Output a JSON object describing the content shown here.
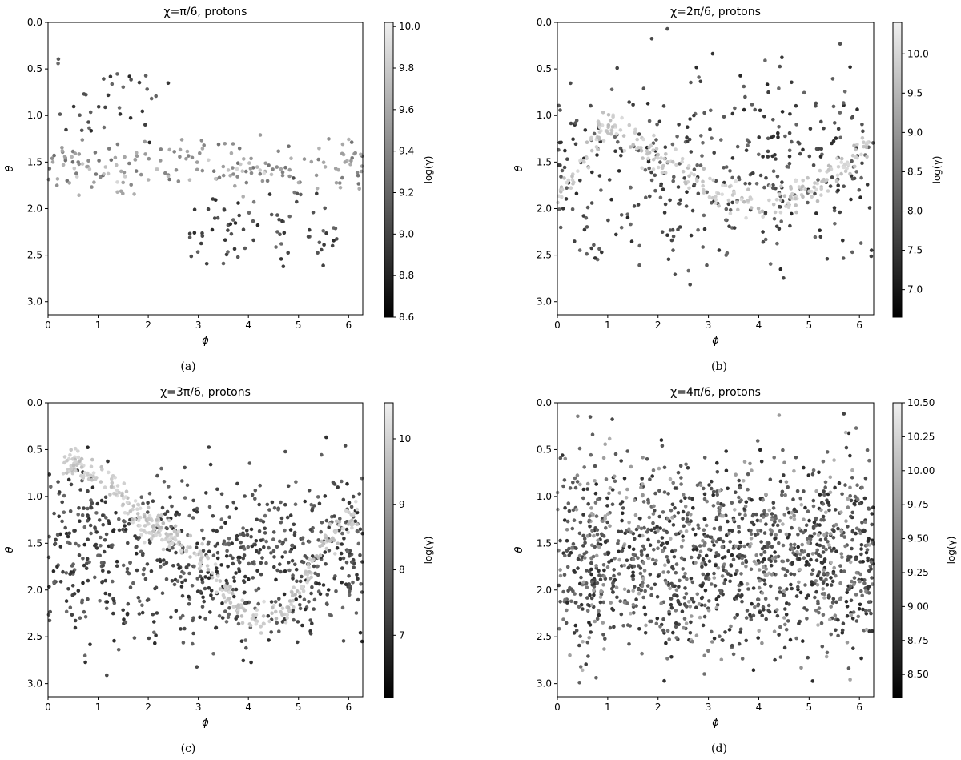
{
  "figure": {
    "captions": [
      "(a)",
      "(b)",
      "(c)",
      "(d)"
    ]
  },
  "chart_data": [
    {
      "type": "scatter",
      "title": "χ=π/6, protons",
      "xlabel": "ϕ",
      "ylabel": "θ",
      "colorbar_label": "log(γ)",
      "xlim": [
        0,
        6.283
      ],
      "ylim": [
        3.14,
        0
      ],
      "y_inverted": true,
      "xticks": [
        "0",
        "1",
        "2",
        "3",
        "4",
        "5",
        "6"
      ],
      "yticks": [
        "0.0",
        "0.5",
        "1.0",
        "1.5",
        "2.0",
        "2.5",
        "3.0"
      ],
      "colorbar_range": [
        8.6,
        10.02
      ],
      "colorbar_ticks": [
        "8.6",
        "8.8",
        "9.0",
        "9.2",
        "9.4",
        "9.6",
        "9.8",
        "10.0"
      ],
      "colormap": "gray",
      "point_count": 300,
      "features": [
        {
          "x": [
            0,
            6.28
          ],
          "y_center": 1.55,
          "y_spread": 0.22,
          "shade": "mid",
          "weight": 0.55
        },
        {
          "x": [
            2.8,
            5.8
          ],
          "y_center": 2.3,
          "y_spread": 0.35,
          "shade": "dark",
          "weight": 0.25
        },
        {
          "x": [
            0,
            2.5
          ],
          "y_center": 0.85,
          "y_spread": 0.3,
          "shade": "dark",
          "weight": 0.12
        },
        {
          "x": [
            0.2,
            4.5
          ],
          "y_center": 1.6,
          "y_spread": 0.1,
          "shade": "light",
          "weight": 0.08
        }
      ]
    },
    {
      "type": "scatter",
      "title": "χ=2π/6, protons",
      "xlabel": "ϕ",
      "ylabel": "θ",
      "colorbar_label": "log(γ)",
      "xlim": [
        0,
        6.283
      ],
      "ylim": [
        3.14,
        0
      ],
      "y_inverted": true,
      "xticks": [
        "0",
        "1",
        "2",
        "3",
        "4",
        "5",
        "6"
      ],
      "yticks": [
        "0.0",
        "0.5",
        "1.0",
        "1.5",
        "2.0",
        "2.5",
        "3.0"
      ],
      "colorbar_range": [
        6.65,
        10.4
      ],
      "colorbar_ticks": [
        "7.0",
        "7.5",
        "8.0",
        "8.5",
        "9.0",
        "9.5",
        "10.0"
      ],
      "colormap": "gray",
      "point_count": 650,
      "features": [
        {
          "x": [
            0,
            6.28
          ],
          "y_center": 1.6,
          "y_spread": 0.75,
          "shade": "dark",
          "weight": 0.6
        },
        {
          "curve": [
            [
              0.0,
              1.9
            ],
            [
              1.0,
              1.1
            ],
            [
              2.2,
              1.5
            ],
            [
              3.2,
              1.85
            ],
            [
              4.2,
              2.0
            ],
            [
              5.0,
              1.8
            ],
            [
              6.2,
              1.3
            ]
          ],
          "y_spread": 0.12,
          "shade": "light",
          "weight": 0.4
        }
      ]
    },
    {
      "type": "scatter",
      "title": "χ=3π/6, protons",
      "xlabel": "ϕ",
      "ylabel": "θ",
      "colorbar_label": "log(γ)",
      "xlim": [
        0,
        6.283
      ],
      "ylim": [
        3.14,
        0
      ],
      "y_inverted": true,
      "xticks": [
        "0",
        "1",
        "2",
        "3",
        "4",
        "5",
        "6"
      ],
      "yticks": [
        "0.0",
        "0.5",
        "1.0",
        "1.5",
        "2.0",
        "2.5",
        "3.0"
      ],
      "colorbar_range": [
        6.05,
        10.55
      ],
      "colorbar_ticks": [
        "7",
        "8",
        "9",
        "10"
      ],
      "colormap": "gray",
      "point_count": 1100,
      "features": [
        {
          "x": [
            0,
            6.28
          ],
          "y_center": 1.65,
          "y_spread": 0.65,
          "shade": "dark",
          "weight": 0.68
        },
        {
          "curve": [
            [
              0.3,
              0.6
            ],
            [
              1.2,
              0.85
            ],
            [
              2.0,
              1.3
            ],
            [
              3.0,
              1.6
            ],
            [
              4.0,
              2.3
            ],
            [
              4.8,
              2.2
            ],
            [
              5.5,
              1.5
            ],
            [
              6.2,
              1.2
            ]
          ],
          "y_spread": 0.12,
          "shade": "light",
          "weight": 0.32
        }
      ]
    },
    {
      "type": "scatter",
      "title": "χ=4π/6, protons",
      "xlabel": "ϕ",
      "ylabel": "θ",
      "colorbar_label": "log(γ)",
      "xlim": [
        0,
        6.283
      ],
      "ylim": [
        3.14,
        0
      ],
      "y_inverted": true,
      "xticks": [
        "0",
        "1",
        "2",
        "3",
        "4",
        "5",
        "6"
      ],
      "yticks": [
        "0.0",
        "0.5",
        "1.0",
        "1.5",
        "2.0",
        "2.5",
        "3.0"
      ],
      "colorbar_range": [
        8.33,
        10.5
      ],
      "colorbar_ticks": [
        "8.50",
        "8.75",
        "9.00",
        "9.25",
        "9.50",
        "9.75",
        "10.00",
        "10.25",
        "10.50"
      ],
      "colormap": "gray",
      "point_count": 1400,
      "features": [
        {
          "x": [
            0,
            6.28
          ],
          "y_center": 1.65,
          "y_spread": 0.75,
          "shade": "dark",
          "weight": 0.75
        },
        {
          "x": [
            0,
            6.28
          ],
          "y_center": 1.6,
          "y_spread": 0.8,
          "shade": "mid",
          "weight": 0.25
        }
      ]
    }
  ]
}
